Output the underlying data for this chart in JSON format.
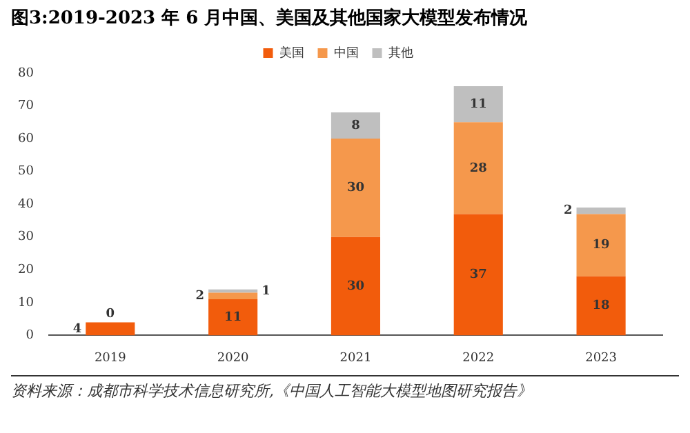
{
  "chart_data": {
    "type": "bar",
    "title": "图3:2019-2023 年 6 月中国、美国及其他国家大模型发布情况",
    "categories": [
      "2019",
      "2020",
      "2021",
      "2022",
      "2023"
    ],
    "series": [
      {
        "name": "美国",
        "color": "#f25c0c",
        "values": [
          4,
          11,
          30,
          37,
          18
        ]
      },
      {
        "name": "中国",
        "color": "#f5984c",
        "values": [
          0,
          2,
          30,
          28,
          19
        ]
      },
      {
        "name": "其他",
        "color": "#bfbfbf",
        "values": [
          0,
          1,
          8,
          11,
          2
        ],
        "value_labels": [
          null,
          "1",
          "8",
          "11",
          "2"
        ]
      }
    ],
    "stacked": true,
    "ylim": [
      0,
      80
    ],
    "yticks": [
      0,
      10,
      20,
      30,
      40,
      50,
      60,
      70,
      80
    ],
    "grid": false,
    "legend": "top",
    "data_labels": true,
    "annotations": [
      "资料来源：成都市科学技术信息研究所,《中国人工智能大模型地图研究报告》"
    ]
  }
}
